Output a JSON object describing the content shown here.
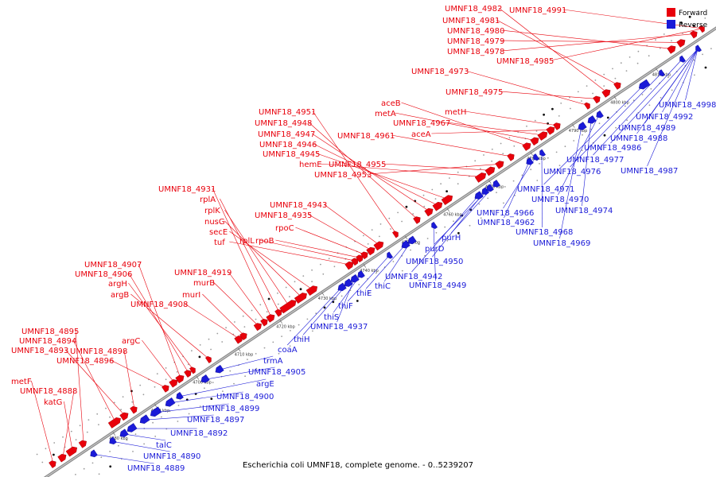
{
  "caption": "Escherichia coli UMNF18, complete genome. - 0..5239207",
  "legend": {
    "forward": {
      "label": "Forward",
      "color": "#e8000b"
    },
    "reverse": {
      "label": "Reverse",
      "color": "#1a1ad8"
    }
  },
  "ticks": [
    "4680 kbp",
    "4690 kbp",
    "4700 kbp",
    "4710 kbp",
    "4720 kbp",
    "4730 kbp",
    "4740 kbp",
    "4750 kbp",
    "4760 kbp",
    "4770 kbp",
    "4780 kbp",
    "4790 kbp",
    "4800 kbp",
    "4810 kbp"
  ],
  "forward_labels": [
    "metF",
    "UMNF18_4888",
    "katG",
    "UMNF18_4895",
    "UMNF18_4894",
    "UMNF18_4893",
    "UMNF18_4898",
    "UMNF18_4896",
    "argC",
    "UMNF18_4907",
    "UMNF18_4906",
    "argH",
    "argB",
    "UMNF18_4908",
    "murI",
    "murB",
    "UMNF18_4919",
    "UMNF18_4931",
    "rplA",
    "rplK",
    "nusG",
    "secE",
    "tuf",
    "rplL",
    "rpoB",
    "rpoC",
    "UMNF18_4935",
    "UMNF18_4943",
    "UMNF18_4951",
    "UMNF18_4948",
    "UMNF18_4947",
    "UMNF18_4946",
    "UMNF18_4945",
    "hemE",
    "UMNF18_4955",
    "UMNF18_4953",
    "UMNF18_4961",
    "aceB",
    "metA",
    "UMNF18_4967",
    "aceA",
    "metH",
    "UMNF18_4973",
    "UMNF18_4975",
    "UMNF18_4982",
    "UMNF18_4981",
    "UMNF18_4980",
    "UMNF18_4979",
    "UMNF18_4978",
    "UMNF18_4991",
    "UMNF18_4985"
  ],
  "reverse_labels": [
    "UMNF18_4889",
    "UMNF18_4890",
    "talC",
    "UMNF18_4892",
    "UMNF18_4897",
    "UMNF18_4899",
    "UMNF18_4900",
    "argE",
    "UMNF18_4905",
    "trmA",
    "coaA",
    "thiH",
    "UMNF18_4937",
    "thiS",
    "thiF",
    "thiE",
    "thiC",
    "UMNF18_4949",
    "UMNF18_4942",
    "UMNF18_4950",
    "purD",
    "purH",
    "UMNF18_4962",
    "UMNF18_4966",
    "UMNF18_4968",
    "UMNF18_4969",
    "UMNF18_4974",
    "UMNF18_4970",
    "UMNF18_4971",
    "UMNF18_4976",
    "UMNF18_4977",
    "UMNF18_4987",
    "UMNF18_4986",
    "UMNF18_4988",
    "UMNF18_4989",
    "UMNF18_4992",
    "UMNF18_4998"
  ]
}
